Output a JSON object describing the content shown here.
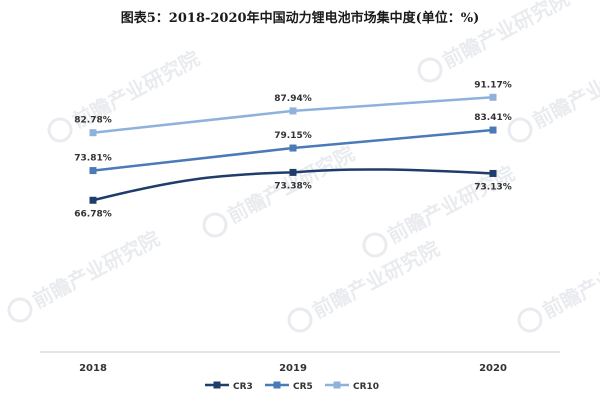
{
  "chart_data": {
    "type": "line",
    "title": "图表5：2018-2020年中国动力锂电池市场集中度(单位：%)",
    "xlabel": "",
    "ylabel": "",
    "categories": [
      "2018",
      "2019",
      "2020"
    ],
    "ylim": [
      55,
      100
    ],
    "grid": false,
    "legend_position": "bottom",
    "series": [
      {
        "name": "CR3",
        "values": [
          66.78,
          73.38,
          73.13
        ],
        "labels": [
          "66.78%",
          "73.38%",
          "73.13%"
        ],
        "color": "#1f3d6b",
        "smooth": true
      },
      {
        "name": "CR5",
        "values": [
          73.81,
          79.15,
          83.41
        ],
        "labels": [
          "73.81%",
          "79.15%",
          "83.41%"
        ],
        "color": "#4a7ab8",
        "smooth": false
      },
      {
        "name": "CR10",
        "values": [
          82.78,
          87.94,
          91.17
        ],
        "labels": [
          "82.78%",
          "87.94%",
          "91.17%"
        ],
        "color": "#8fb1db",
        "smooth": false
      }
    ]
  },
  "watermark": {
    "text": "前瞻产业研究院"
  }
}
